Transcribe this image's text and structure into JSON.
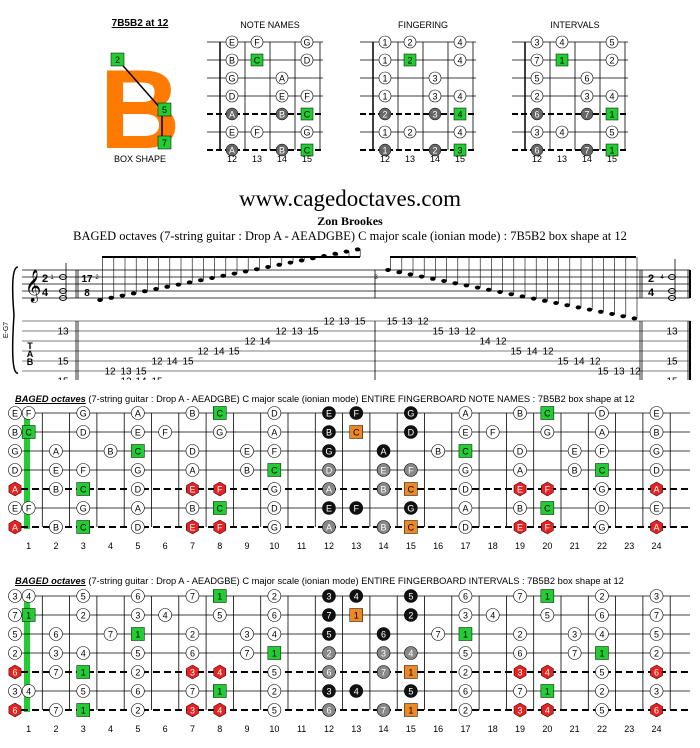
{
  "top": {
    "box_label": "7B5B2 at 12",
    "box_shape_label": "BOX SHAPE",
    "box_letter": "B",
    "box_fingers": [
      "2",
      "5",
      "7"
    ],
    "frets": [
      "12",
      "13",
      "14",
      "15"
    ],
    "diagrams": [
      {
        "title": "NOTE NAMES",
        "grid": [
          [
            "E",
            "F",
            "",
            "G"
          ],
          [
            "B",
            "C",
            "",
            "D"
          ],
          [
            "G",
            "",
            "A",
            ""
          ],
          [
            "D",
            "",
            "E",
            "F"
          ],
          [
            "A",
            "",
            "B",
            "C"
          ],
          [
            "E",
            "F",
            "",
            "G"
          ],
          [
            "A",
            "",
            "B",
            "C"
          ]
        ]
      },
      {
        "title": "FINGERING",
        "grid": [
          [
            "1",
            "2",
            "",
            "4"
          ],
          [
            "1",
            "2",
            "",
            "4"
          ],
          [
            "1",
            "",
            "3",
            ""
          ],
          [
            "1",
            "",
            "3",
            "4"
          ],
          [
            "2",
            "",
            "3",
            "4"
          ],
          [
            "1",
            "2",
            "",
            "4"
          ],
          [
            "1",
            "",
            "2",
            "3"
          ]
        ]
      },
      {
        "title": "INTERVALS",
        "grid": [
          [
            "3",
            "4",
            "",
            "5"
          ],
          [
            "7",
            "1",
            "",
            "2"
          ],
          [
            "5",
            "",
            "6",
            ""
          ],
          [
            "2",
            "",
            "3",
            "4"
          ],
          [
            "6",
            "",
            "7",
            "1"
          ],
          [
            "3",
            "4",
            "",
            "5"
          ],
          [
            "6",
            "",
            "7",
            "1"
          ]
        ]
      }
    ]
  },
  "header": {
    "website": "www.cagedoctaves.com",
    "author": "Zon Brookes",
    "subtitle": "BAGED octaves (7-string guitar : Drop A - AEADGBE) C major scale (ionian mode) : 7B5B2 box shape at 12"
  },
  "score": {
    "chord_symbol": "E-G7",
    "time_sig_left": "2/4",
    "time_sig_mid": "17/8",
    "time_sig_right": "2/4",
    "measure_numbers": [
      "1",
      "2",
      "3",
      "4"
    ],
    "tab_letters": [
      "T",
      "A",
      "B"
    ],
    "tab_first": [
      "13",
      "15",
      "15"
    ],
    "tab_last": [
      "13",
      "15",
      "15"
    ],
    "tab_row1": [
      "12",
      "13",
      "15",
      "12",
      "13",
      "15",
      "15",
      "13",
      "12",
      "15",
      "13",
      "12"
    ],
    "tab_row2": [
      "12",
      "14",
      "14",
      "12"
    ],
    "tab_row3": [
      "12",
      "14",
      "15",
      "15",
      "14",
      "12"
    ],
    "tab_row4": [
      "15",
      "14",
      "12"
    ],
    "tab_row5": [
      "12",
      "13",
      "15",
      "12",
      "14",
      "15",
      "15",
      "14",
      "12",
      "15",
      "13",
      "12"
    ],
    "tab_row6": [
      "12",
      "14",
      "15",
      "15",
      "14",
      "12"
    ]
  },
  "fb_notes": {
    "title_em": "BAGED octaves",
    "title_rest": " (7-string guitar : Drop A - AEADGBE) C major scale (ionian mode) ENTIRE FINGERBOARD NOTE NAMES : 7B5B2 box shape at 12",
    "open": [
      "E",
      "B",
      "G",
      "D",
      "A",
      "E",
      "A"
    ]
  },
  "fb_intervals": {
    "title_em": "BAGED octaves",
    "title_rest": " (7-string guitar : Drop A - AEADGBE) C major scale (ionian mode) ENTIRE FINGERBOARD INTERVALS : 7B5B2 box shape at 12",
    "open": [
      "3",
      "7",
      "5",
      "2",
      "6",
      "3",
      "6"
    ]
  },
  "fret_numbers": [
    "1",
    "2",
    "3",
    "4",
    "5",
    "6",
    "7",
    "8",
    "9",
    "10",
    "11",
    "12",
    "13",
    "14",
    "15",
    "16",
    "17",
    "18",
    "19",
    "20",
    "21",
    "22",
    "23",
    "24"
  ],
  "colors": {
    "green": "#22cc33",
    "red": "#e82020",
    "orange": "#ee8822",
    "dark": "#111111",
    "grey": "#777777",
    "box_orange": "#ff7a00"
  }
}
